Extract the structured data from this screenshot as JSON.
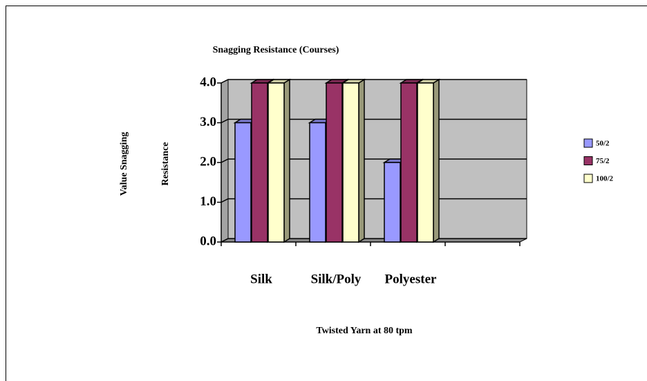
{
  "chart_data": {
    "type": "bar3d",
    "title": "Snagging Resistance (Courses)",
    "xlabel": "Twisted Yarn at 80 tpm",
    "ylabel": [
      "Value Snagging",
      "Resistance"
    ],
    "categories": [
      "Silk",
      "Silk/Poly",
      "Polyester",
      null
    ],
    "series": [
      {
        "name": "50/2",
        "color": "#9999ff",
        "values": [
          3,
          3,
          2,
          null
        ]
      },
      {
        "name": "75/2",
        "color": "#993366",
        "values": [
          4,
          4,
          4,
          null
        ]
      },
      {
        "name": "100/2",
        "color": "#ffffcc",
        "values": [
          4,
          4,
          4,
          null
        ]
      }
    ],
    "ylim": [
      0,
      4
    ],
    "yticks": [
      {
        "value": 0,
        "label": "0.0"
      },
      {
        "value": 1,
        "label": "1.0"
      },
      {
        "value": 2,
        "label": "2.0"
      },
      {
        "value": 3,
        "label": "3.0"
      },
      {
        "value": 4,
        "label": "4.0"
      }
    ],
    "grid": true,
    "wall_color": "#c0c0c0",
    "legend": "right"
  }
}
